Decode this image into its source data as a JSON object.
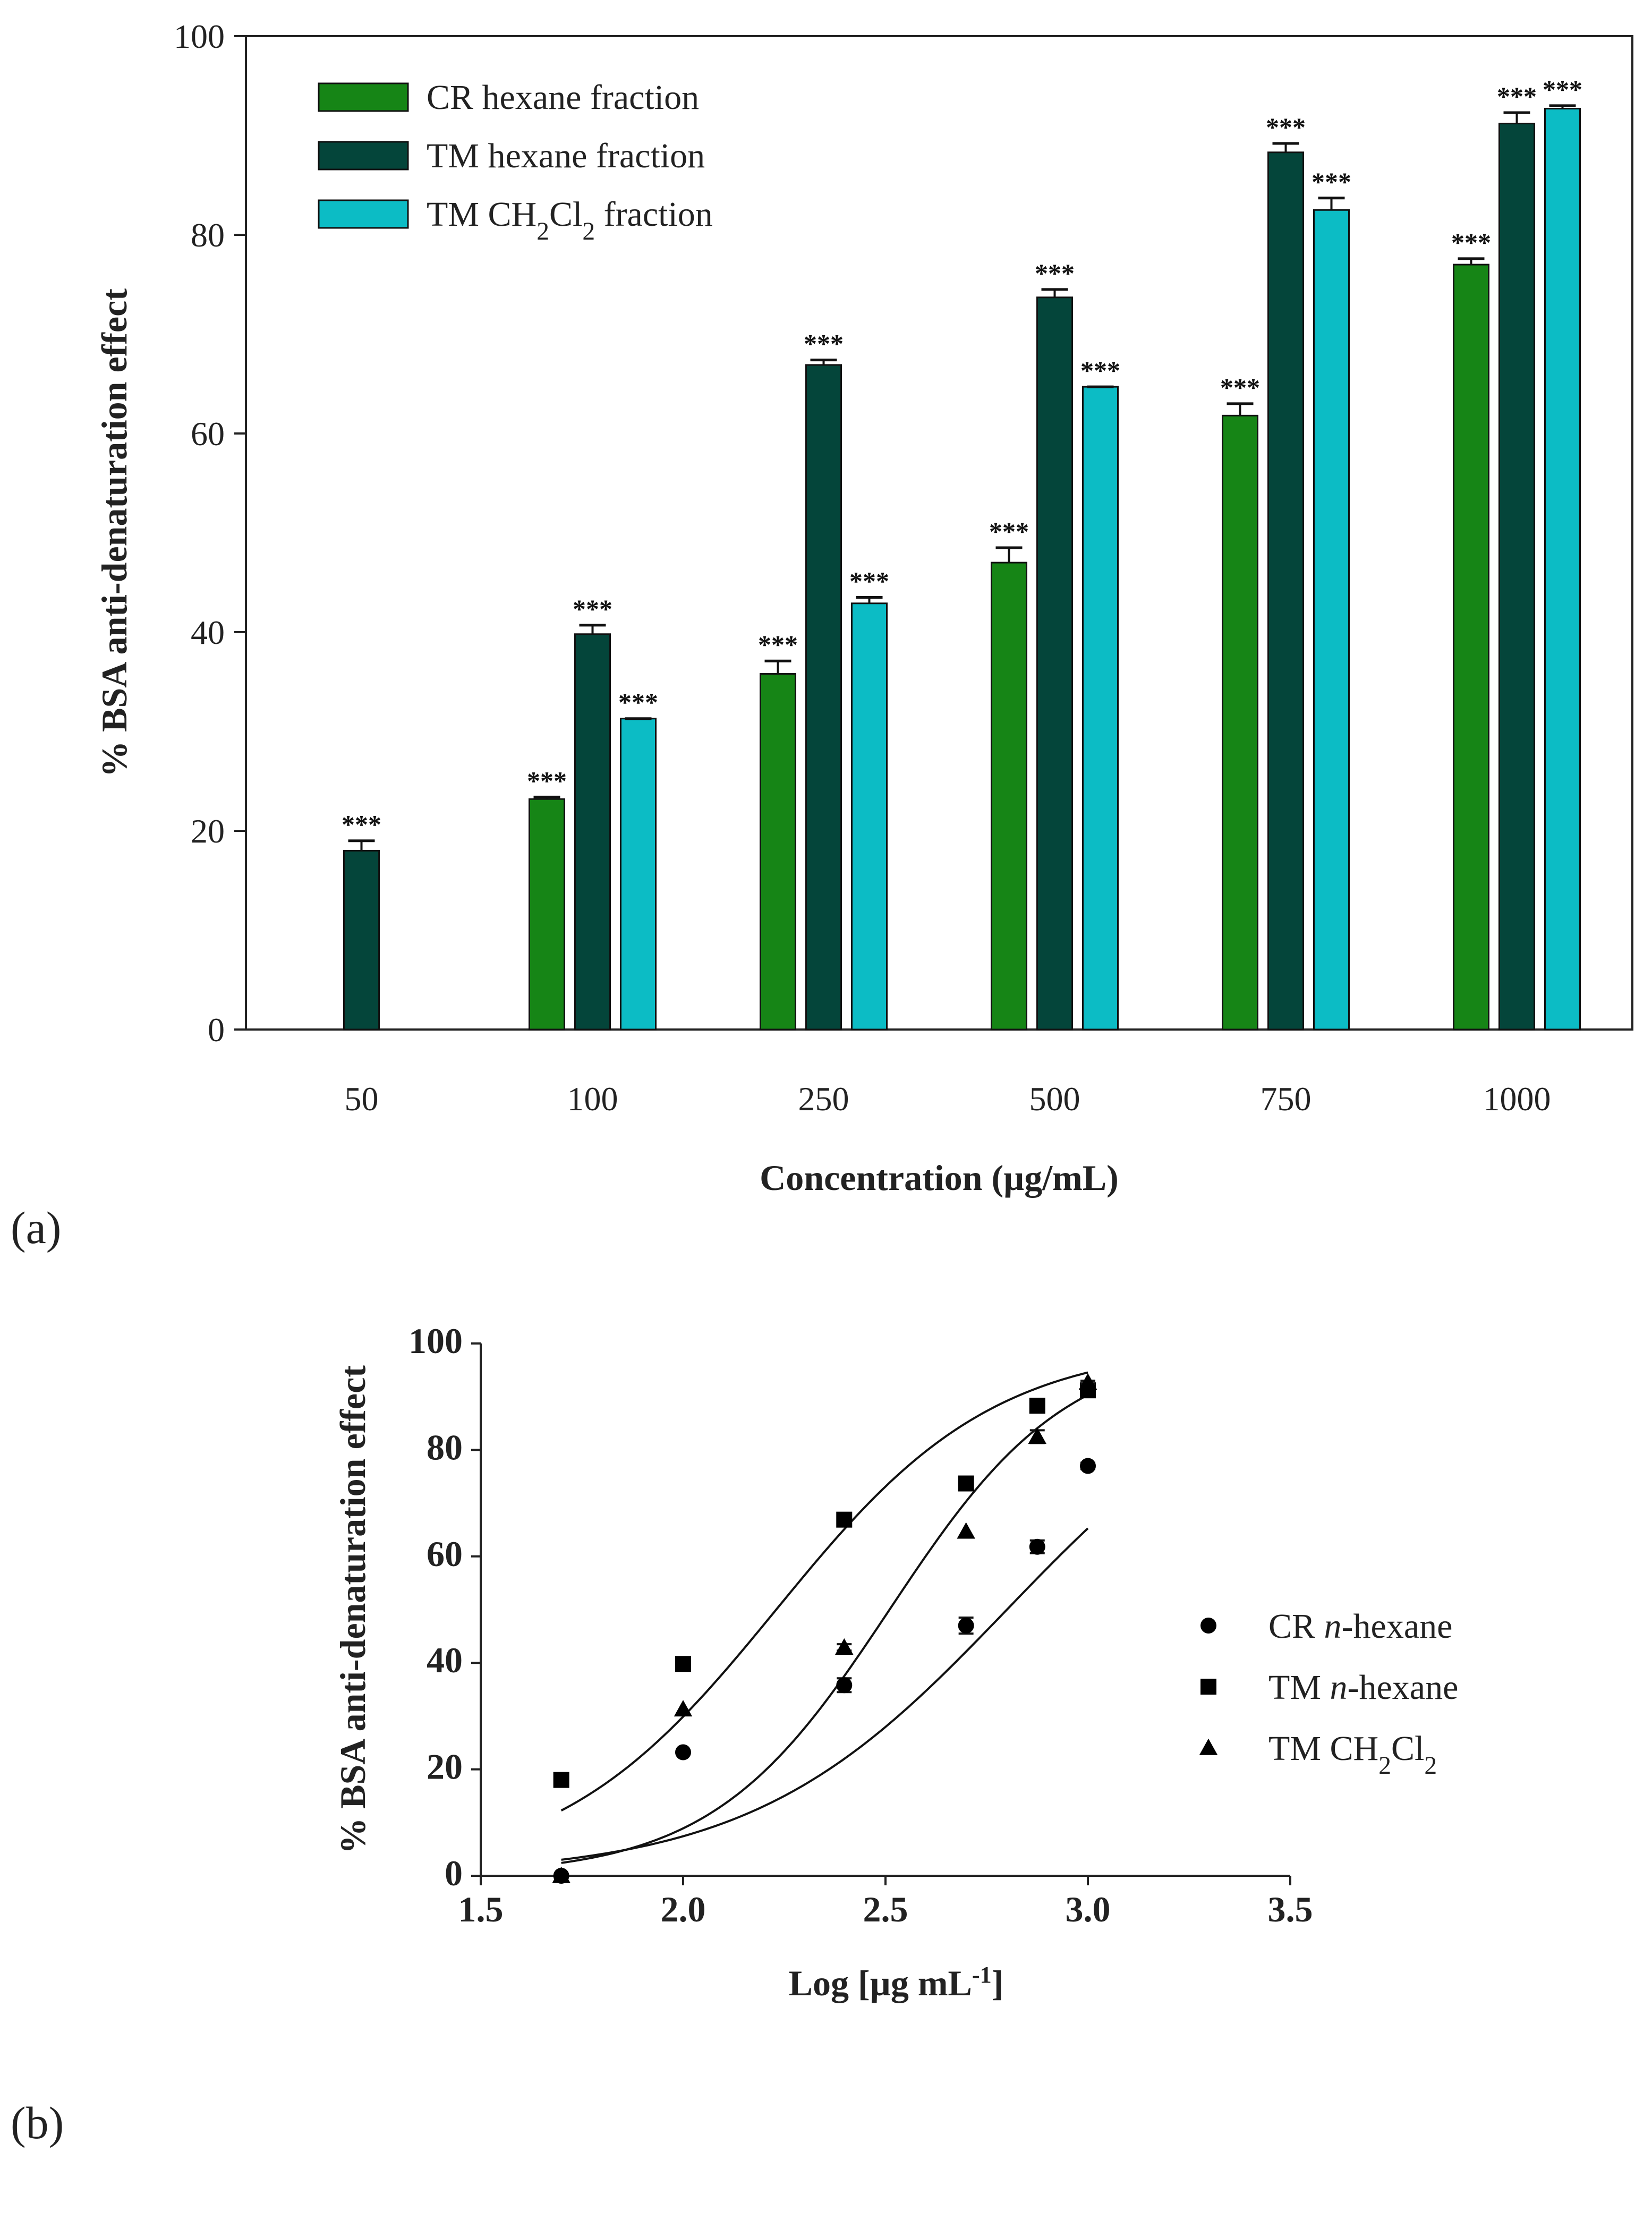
{
  "panel_labels": [
    "(a)",
    "(b)"
  ],
  "chart_data": [
    {
      "type": "bar",
      "categories": [
        "50",
        "100",
        "250",
        "500",
        "750",
        "1000"
      ],
      "xlabel": "Concentration (µg/mL)",
      "ylabel": "% BSA anti-denaturation effect",
      "ylim": [
        0,
        100
      ],
      "yticks": [
        0,
        20,
        40,
        60,
        80,
        100
      ],
      "legend_position": "top-left",
      "significance_label": "***",
      "series": [
        {
          "name": "CR hexane fraction",
          "color": "#168516",
          "values": [
            null,
            23.2,
            35.8,
            47.0,
            61.8,
            77.0
          ],
          "errors": [
            null,
            0.2,
            1.3,
            1.5,
            1.2,
            0.6
          ],
          "significance": [
            null,
            true,
            true,
            true,
            true,
            true
          ]
        },
        {
          "name": "TM hexane fraction",
          "name_rich": [
            {
              "t": "TM hexane fraction"
            }
          ],
          "color": "#04453a",
          "values": [
            18.0,
            39.8,
            66.9,
            73.7,
            88.3,
            91.2
          ],
          "errors": [
            1.0,
            0.9,
            0.5,
            0.8,
            0.9,
            1.1
          ],
          "significance": [
            true,
            true,
            true,
            true,
            true,
            true
          ]
        },
        {
          "name": "TM CH2Cl2 fraction",
          "color": "#0cbcc5",
          "values": [
            null,
            31.3,
            42.9,
            64.7,
            82.5,
            92.7
          ],
          "errors": [
            null,
            0.0,
            0.6,
            0.0,
            1.2,
            0.3
          ],
          "significance": [
            null,
            true,
            true,
            true,
            true,
            true
          ]
        }
      ]
    },
    {
      "type": "scatter",
      "xlabel": "Log [µg mL⁻¹]",
      "ylabel": "% BSA anti-denaturation effect",
      "xlim": [
        1.5,
        3.5
      ],
      "ylim": [
        0,
        100
      ],
      "xticks": [
        "1.5",
        "2.0",
        "2.5",
        "3.0",
        "3.5"
      ],
      "yticks": [
        "0",
        "20",
        "40",
        "60",
        "80",
        "100"
      ],
      "legend_position": "right",
      "series": [
        {
          "name": "CR n-hexane",
          "marker": "circle",
          "x": [
            1.699,
            2.0,
            2.398,
            2.699,
            2.875,
            3.0
          ],
          "y": [
            0,
            23.2,
            35.8,
            47.0,
            61.8,
            77.0
          ],
          "errors": [
            0,
            0.2,
            1.3,
            1.5,
            1.2,
            0.6
          ],
          "fit": {
            "bottom": 0,
            "top": 100,
            "logEC50": 2.8,
            "hill": 1.37
          }
        },
        {
          "name": "TM n-hexane",
          "marker": "square",
          "x": [
            1.699,
            2.0,
            2.398,
            2.699,
            2.875,
            3.0
          ],
          "y": [
            18.0,
            39.8,
            66.9,
            73.7,
            88.3,
            91.2
          ],
          "errors": [
            1.0,
            0.9,
            0.5,
            0.8,
            0.9,
            1.1
          ],
          "fit": {
            "bottom": 0,
            "top": 100,
            "logEC50": 2.23,
            "hill": 1.61
          }
        },
        {
          "name": "TM CH2Cl2",
          "marker": "triangle",
          "x": [
            1.699,
            2.0,
            2.398,
            2.699,
            2.875,
            3.0
          ],
          "y": [
            0,
            31.3,
            42.9,
            64.7,
            82.5,
            92.7
          ],
          "errors": [
            0,
            0.0,
            0.6,
            0.0,
            1.2,
            0.3
          ],
          "fit": {
            "bottom": 0,
            "top": 100,
            "logEC50": 2.51,
            "hill": 1.98
          }
        }
      ]
    }
  ]
}
